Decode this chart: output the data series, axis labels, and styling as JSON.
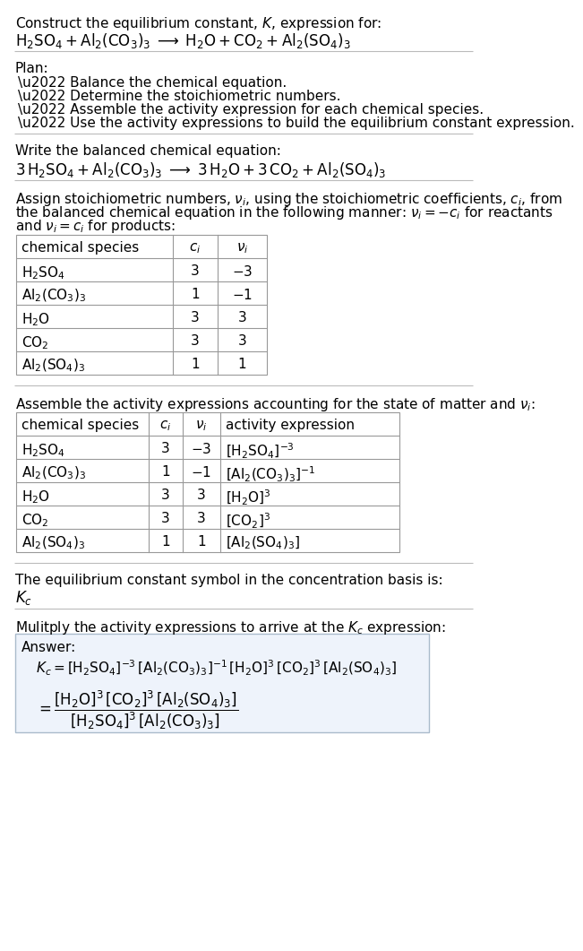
{
  "bg_color": "#ffffff",
  "text_color": "#000000",
  "title_line1": "Construct the equilibrium constant, $K$, expression for:",
  "title_line2": "$\\mathrm{H_2SO_4 + Al_2(CO_3)_3 \\;\\longrightarrow\\; H_2O + CO_2 + Al_2(SO_4)_3}$",
  "plan_header": "Plan:",
  "plan_items": [
    "\\u2022 Balance the chemical equation.",
    "\\u2022 Determine the stoichiometric numbers.",
    "\\u2022 Assemble the activity expression for each chemical species.",
    "\\u2022 Use the activity expressions to build the equilibrium constant expression."
  ],
  "balanced_header": "Write the balanced chemical equation:",
  "balanced_eq": "$\\mathrm{3\\,H_2SO_4 + Al_2(CO_3)_3 \\;\\longrightarrow\\; 3\\,H_2O + 3\\,CO_2 + Al_2(SO_4)_3}$",
  "stoich_lines": [
    "Assign stoichiometric numbers, $\\nu_i$, using the stoichiometric coefficients, $c_i$, from",
    "the balanced chemical equation in the following manner: $\\nu_i = -c_i$ for reactants",
    "and $\\nu_i = c_i$ for products:"
  ],
  "table1_cols": [
    "chemical species",
    "$c_i$",
    "$\\nu_i$"
  ],
  "table1_rows": [
    [
      "$\\mathrm{H_2SO_4}$",
      "3",
      "$-3$"
    ],
    [
      "$\\mathrm{Al_2(CO_3)_3}$",
      "1",
      "$-1$"
    ],
    [
      "$\\mathrm{H_2O}$",
      "3",
      "3"
    ],
    [
      "$\\mathrm{CO_2}$",
      "3",
      "3"
    ],
    [
      "$\\mathrm{Al_2(SO_4)_3}$",
      "1",
      "1"
    ]
  ],
  "activity_header": "Assemble the activity expressions accounting for the state of matter and $\\nu_i$:",
  "table2_cols": [
    "chemical species",
    "$c_i$",
    "$\\nu_i$",
    "activity expression"
  ],
  "table2_rows": [
    [
      "$\\mathrm{H_2SO_4}$",
      "3",
      "$-3$",
      "$[\\mathrm{H_2SO_4}]^{-3}$"
    ],
    [
      "$\\mathrm{Al_2(CO_3)_3}$",
      "1",
      "$-1$",
      "$[\\mathrm{Al_2(CO_3)_3}]^{-1}$"
    ],
    [
      "$\\mathrm{H_2O}$",
      "3",
      "3",
      "$[\\mathrm{H_2O}]^3$"
    ],
    [
      "$\\mathrm{CO_2}$",
      "3",
      "3",
      "$[\\mathrm{CO_2}]^3$"
    ],
    [
      "$\\mathrm{Al_2(SO_4)_3}$",
      "1",
      "1",
      "$[\\mathrm{Al_2(SO_4)_3}]$"
    ]
  ],
  "kc_header": "The equilibrium constant symbol in the concentration basis is:",
  "kc_symbol": "$K_c$",
  "multiply_header": "Mulitply the activity expressions to arrive at the $K_c$ expression:",
  "answer_label": "Answer:",
  "answer_line1": "$K_c = [\\mathrm{H_2SO_4}]^{-3}\\,[\\mathrm{Al_2(CO_3)_3}]^{-1}\\,[\\mathrm{H_2O}]^3\\,[\\mathrm{CO_2}]^3\\,[\\mathrm{Al_2(SO_4)_3}]$",
  "answer_line2": "$= \\dfrac{[\\mathrm{H_2O}]^3\\,[\\mathrm{CO_2}]^3\\,[\\mathrm{Al_2(SO_4)_3}]}{[\\mathrm{H_2SO_4}]^3\\,[\\mathrm{Al_2(CO_3)_3}]}$",
  "fs": 11,
  "fs_eq": 12,
  "fs_small": 10
}
